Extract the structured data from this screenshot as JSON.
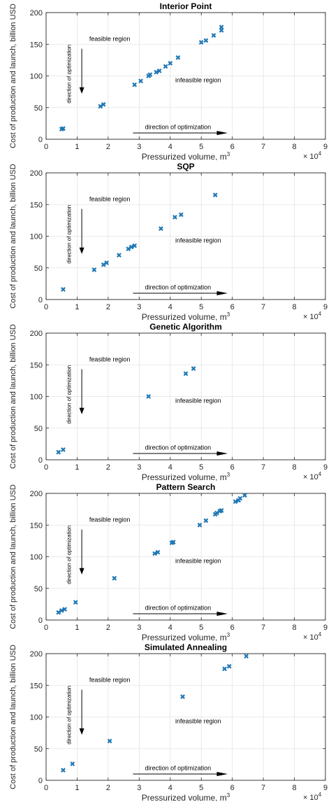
{
  "chart_data": [
    {
      "type": "scatter",
      "title": "Interior Point",
      "xlabel": "Pressurized volume, m",
      "xlabel_sup": "3",
      "ylabel": "Cost of production and launch, billion USD",
      "x_multiplier": "× 10",
      "x_multiplier_sup": "4",
      "xlim": [
        0,
        9
      ],
      "ylim": [
        0,
        200
      ],
      "xticks": [
        "0",
        "1",
        "2",
        "3",
        "4",
        "5",
        "6",
        "7",
        "8",
        "9"
      ],
      "yticks": [
        "0",
        "50",
        "100",
        "150",
        "200"
      ],
      "grid": true,
      "annotations": {
        "feasible": "feasible region",
        "infeasible": "infeasible region",
        "direction_vertical": "direction of optimization",
        "direction_horizontal": "direction of optimization"
      },
      "marker_color": "#1f77b4",
      "points": [
        {
          "x": 0.5,
          "y": 16
        },
        {
          "x": 0.55,
          "y": 17
        },
        {
          "x": 1.75,
          "y": 52
        },
        {
          "x": 1.85,
          "y": 55
        },
        {
          "x": 2.85,
          "y": 86
        },
        {
          "x": 3.05,
          "y": 92
        },
        {
          "x": 3.3,
          "y": 100
        },
        {
          "x": 3.35,
          "y": 102
        },
        {
          "x": 3.55,
          "y": 106
        },
        {
          "x": 3.65,
          "y": 108
        },
        {
          "x": 3.85,
          "y": 115
        },
        {
          "x": 4.0,
          "y": 120
        },
        {
          "x": 4.25,
          "y": 129
        },
        {
          "x": 5.0,
          "y": 153
        },
        {
          "x": 5.15,
          "y": 156
        },
        {
          "x": 5.4,
          "y": 164
        },
        {
          "x": 5.65,
          "y": 172
        },
        {
          "x": 5.65,
          "y": 177
        }
      ]
    },
    {
      "type": "scatter",
      "title": "SQP",
      "xlabel": "Pressurized volume, m",
      "xlabel_sup": "3",
      "ylabel": "Cost of production and launch, billion USD",
      "x_multiplier": "× 10",
      "x_multiplier_sup": "4",
      "xlim": [
        0,
        9
      ],
      "ylim": [
        0,
        200
      ],
      "xticks": [
        "0",
        "1",
        "2",
        "3",
        "4",
        "5",
        "6",
        "7",
        "8",
        "9"
      ],
      "yticks": [
        "0",
        "50",
        "100",
        "150",
        "200"
      ],
      "grid": true,
      "annotations": {
        "feasible": "feasible region",
        "infeasible": "infeasible region",
        "direction_vertical": "direction of optimization",
        "direction_horizontal": "direction of optimization"
      },
      "marker_color": "#1f77b4",
      "points": [
        {
          "x": 0.55,
          "y": 16
        },
        {
          "x": 1.55,
          "y": 47
        },
        {
          "x": 1.85,
          "y": 55
        },
        {
          "x": 1.95,
          "y": 58
        },
        {
          "x": 2.35,
          "y": 70
        },
        {
          "x": 2.65,
          "y": 80
        },
        {
          "x": 2.75,
          "y": 83
        },
        {
          "x": 2.85,
          "y": 85
        },
        {
          "x": 3.7,
          "y": 112
        },
        {
          "x": 4.15,
          "y": 130
        },
        {
          "x": 4.35,
          "y": 134
        },
        {
          "x": 5.45,
          "y": 165
        }
      ]
    },
    {
      "type": "scatter",
      "title": "Genetic Algorithm",
      "xlabel": "Pressurized volume, m",
      "xlabel_sup": "3",
      "ylabel": "Cost of production and launch, billion USD",
      "x_multiplier": "× 10",
      "x_multiplier_sup": "4",
      "xlim": [
        0,
        9
      ],
      "ylim": [
        0,
        200
      ],
      "xticks": [
        "0",
        "1",
        "2",
        "3",
        "4",
        "5",
        "6",
        "7",
        "8",
        "9"
      ],
      "yticks": [
        "0",
        "50",
        "100",
        "150",
        "200"
      ],
      "grid": true,
      "annotations": {
        "feasible": "feasible region",
        "infeasible": "infeasible region",
        "direction_vertical": "direction of optimization",
        "direction_horizontal": "direction of optimization"
      },
      "marker_color": "#1f77b4",
      "points": [
        {
          "x": 0.4,
          "y": 12
        },
        {
          "x": 0.55,
          "y": 16
        },
        {
          "x": 3.3,
          "y": 100
        },
        {
          "x": 4.5,
          "y": 136
        },
        {
          "x": 4.75,
          "y": 144
        }
      ]
    },
    {
      "type": "scatter",
      "title": "Pattern Search",
      "xlabel": "Pressurized volume, m",
      "xlabel_sup": "3",
      "ylabel": "Cost of production and launch, billion USD",
      "x_multiplier": "× 10",
      "x_multiplier_sup": "4",
      "xlim": [
        0,
        9
      ],
      "ylim": [
        0,
        200
      ],
      "xticks": [
        "0",
        "1",
        "2",
        "3",
        "4",
        "5",
        "6",
        "7",
        "8",
        "9"
      ],
      "yticks": [
        "0",
        "50",
        "100",
        "150",
        "200"
      ],
      "grid": true,
      "annotations": {
        "feasible": "feasible region",
        "infeasible": "infeasible region",
        "direction_vertical": "direction of optimization",
        "direction_horizontal": "direction of optimization"
      },
      "marker_color": "#1f77b4",
      "points": [
        {
          "x": 0.4,
          "y": 12
        },
        {
          "x": 0.5,
          "y": 15
        },
        {
          "x": 0.6,
          "y": 17
        },
        {
          "x": 0.95,
          "y": 28
        },
        {
          "x": 2.2,
          "y": 66
        },
        {
          "x": 3.5,
          "y": 105
        },
        {
          "x": 3.6,
          "y": 107
        },
        {
          "x": 4.05,
          "y": 122
        },
        {
          "x": 4.1,
          "y": 123
        },
        {
          "x": 4.95,
          "y": 150
        },
        {
          "x": 5.15,
          "y": 157
        },
        {
          "x": 5.45,
          "y": 167
        },
        {
          "x": 5.5,
          "y": 169
        },
        {
          "x": 5.6,
          "y": 172
        },
        {
          "x": 5.65,
          "y": 173
        },
        {
          "x": 6.1,
          "y": 187
        },
        {
          "x": 6.2,
          "y": 189
        },
        {
          "x": 6.25,
          "y": 192
        },
        {
          "x": 6.4,
          "y": 197
        }
      ]
    },
    {
      "type": "scatter",
      "title": "Simulated Annealing",
      "xlabel": "Pressurized volume, m",
      "xlabel_sup": "3",
      "ylabel": "Cost of production and launch, billion USD",
      "x_multiplier": "× 10",
      "x_multiplier_sup": "4",
      "xlim": [
        0,
        9
      ],
      "ylim": [
        0,
        200
      ],
      "xticks": [
        "0",
        "1",
        "2",
        "3",
        "4",
        "5",
        "6",
        "7",
        "8",
        "9"
      ],
      "yticks": [
        "0",
        "50",
        "100",
        "150",
        "200"
      ],
      "grid": true,
      "annotations": {
        "feasible": "feasible region",
        "infeasible": "infeasible region",
        "direction_vertical": "direction of optimization",
        "direction_horizontal": "direction of optimization"
      },
      "marker_color": "#1f77b4",
      "points": [
        {
          "x": 0.55,
          "y": 16
        },
        {
          "x": 0.85,
          "y": 26
        },
        {
          "x": 2.05,
          "y": 62
        },
        {
          "x": 4.4,
          "y": 132
        },
        {
          "x": 5.75,
          "y": 176
        },
        {
          "x": 5.9,
          "y": 180
        },
        {
          "x": 6.45,
          "y": 196
        }
      ]
    }
  ]
}
